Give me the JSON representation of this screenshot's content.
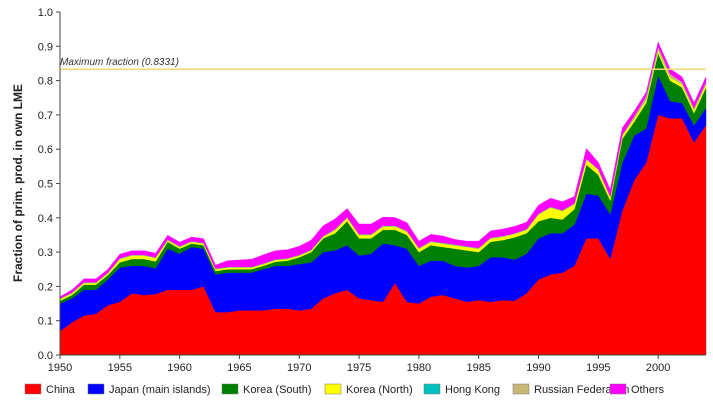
{
  "chart_data": {
    "type": "area",
    "stacked": true,
    "title": "",
    "xlabel": "",
    "ylabel": "Fraction of prim. prod. in own LME",
    "xlim": [
      1950,
      2004
    ],
    "ylim": [
      0,
      1
    ],
    "x_ticks": [
      "1950",
      "1955",
      "1960",
      "1965",
      "1970",
      "1975",
      "1980",
      "1985",
      "1990",
      "1995",
      "2000"
    ],
    "y_ticks": [
      "0.0",
      "0.1",
      "0.2",
      "0.3",
      "0.4",
      "0.5",
      "0.6",
      "0.7",
      "0.8",
      "0.9",
      "1.0"
    ],
    "reference_line": {
      "label": "Maximum fraction (0.8331)",
      "value": 0.8331,
      "color": "#f0d77a"
    },
    "legend_position": "bottom",
    "x": [
      1950,
      1951,
      1952,
      1953,
      1954,
      1955,
      1956,
      1957,
      1958,
      1959,
      1960,
      1961,
      1962,
      1963,
      1964,
      1965,
      1966,
      1967,
      1968,
      1969,
      1970,
      1971,
      1972,
      1973,
      1974,
      1975,
      1976,
      1977,
      1978,
      1979,
      1980,
      1981,
      1982,
      1983,
      1984,
      1985,
      1986,
      1987,
      1988,
      1989,
      1990,
      1991,
      1992,
      1993,
      1994,
      1995,
      1996,
      1997,
      1998,
      1999,
      2000,
      2001,
      2002,
      2003,
      2004
    ],
    "series": [
      {
        "name": "China",
        "color": "#ff0000",
        "values": [
          0.07,
          0.095,
          0.115,
          0.12,
          0.145,
          0.155,
          0.18,
          0.175,
          0.178,
          0.19,
          0.19,
          0.19,
          0.2,
          0.125,
          0.125,
          0.13,
          0.13,
          0.13,
          0.135,
          0.135,
          0.13,
          0.135,
          0.165,
          0.18,
          0.19,
          0.165,
          0.16,
          0.155,
          0.21,
          0.155,
          0.15,
          0.17,
          0.175,
          0.165,
          0.155,
          0.16,
          0.155,
          0.16,
          0.158,
          0.18,
          0.22,
          0.235,
          0.24,
          0.26,
          0.34,
          0.34,
          0.28,
          0.42,
          0.51,
          0.56,
          0.7,
          0.69,
          0.69,
          0.62,
          0.67
        ]
      },
      {
        "name": "Japan (main islands)",
        "color": "#0000ff",
        "values": [
          0.08,
          0.07,
          0.075,
          0.07,
          0.075,
          0.1,
          0.08,
          0.085,
          0.075,
          0.12,
          0.105,
          0.125,
          0.11,
          0.11,
          0.115,
          0.11,
          0.11,
          0.12,
          0.125,
          0.125,
          0.135,
          0.135,
          0.135,
          0.125,
          0.13,
          0.125,
          0.135,
          0.17,
          0.11,
          0.155,
          0.11,
          0.105,
          0.1,
          0.095,
          0.1,
          0.1,
          0.13,
          0.125,
          0.12,
          0.115,
          0.12,
          0.12,
          0.115,
          0.12,
          0.13,
          0.125,
          0.13,
          0.14,
          0.13,
          0.1,
          0.115,
          0.05,
          0.045,
          0.05,
          0.05
        ]
      },
      {
        "name": "Korea (South)",
        "color": "#008000",
        "values": [
          0.008,
          0.01,
          0.015,
          0.015,
          0.013,
          0.015,
          0.02,
          0.02,
          0.02,
          0.02,
          0.015,
          0.01,
          0.01,
          0.01,
          0.01,
          0.01,
          0.01,
          0.01,
          0.012,
          0.015,
          0.02,
          0.03,
          0.04,
          0.05,
          0.07,
          0.05,
          0.045,
          0.04,
          0.045,
          0.04,
          0.04,
          0.045,
          0.04,
          0.05,
          0.05,
          0.04,
          0.045,
          0.05,
          0.065,
          0.06,
          0.05,
          0.045,
          0.04,
          0.045,
          0.085,
          0.06,
          0.04,
          0.07,
          0.04,
          0.075,
          0.065,
          0.06,
          0.045,
          0.035,
          0.06
        ]
      },
      {
        "name": "Korea (North)",
        "color": "#ffff00",
        "values": [
          0.005,
          0.005,
          0.005,
          0.005,
          0.005,
          0.01,
          0.01,
          0.01,
          0.01,
          0.005,
          0.005,
          0.005,
          0.005,
          0.005,
          0.005,
          0.005,
          0.005,
          0.005,
          0.005,
          0.005,
          0.005,
          0.005,
          0.005,
          0.01,
          0.01,
          0.01,
          0.01,
          0.01,
          0.01,
          0.01,
          0.01,
          0.01,
          0.01,
          0.01,
          0.01,
          0.01,
          0.01,
          0.01,
          0.01,
          0.01,
          0.02,
          0.03,
          0.025,
          0.015,
          0.015,
          0.015,
          0.01,
          0.01,
          0.01,
          0.01,
          0.01,
          0.01,
          0.01,
          0.01,
          0.01
        ]
      },
      {
        "name": "Hong Kong",
        "color": "#00c0c0",
        "values": [
          0.001,
          0.001,
          0.001,
          0.001,
          0.001,
          0.001,
          0.001,
          0.001,
          0.001,
          0.001,
          0.001,
          0.001,
          0.001,
          0.001,
          0.001,
          0.001,
          0.001,
          0.001,
          0.001,
          0.001,
          0.001,
          0.001,
          0.001,
          0.001,
          0.001,
          0.001,
          0.001,
          0.001,
          0.001,
          0.001,
          0.001,
          0.001,
          0.001,
          0.001,
          0.001,
          0.001,
          0.001,
          0.001,
          0.001,
          0.001,
          0.001,
          0.001,
          0.001,
          0.001,
          0.001,
          0.001,
          0.001,
          0.001,
          0.001,
          0.001,
          0.001,
          0.001,
          0.001,
          0.001,
          0.001
        ]
      },
      {
        "name": "Russian Federation",
        "color": "#c8b878",
        "values": [
          0.001,
          0.001,
          0.001,
          0.001,
          0.001,
          0.001,
          0.001,
          0.001,
          0.001,
          0.001,
          0.001,
          0.001,
          0.001,
          0.001,
          0.001,
          0.001,
          0.001,
          0.001,
          0.001,
          0.001,
          0.001,
          0.001,
          0.001,
          0.001,
          0.001,
          0.001,
          0.001,
          0.001,
          0.001,
          0.001,
          0.001,
          0.001,
          0.001,
          0.001,
          0.001,
          0.001,
          0.001,
          0.001,
          0.001,
          0.001,
          0.001,
          0.001,
          0.001,
          0.001,
          0.001,
          0.001,
          0.001,
          0.001,
          0.005,
          0.008,
          0.008,
          0.008,
          0.005,
          0.004,
          0.004
        ]
      },
      {
        "name": "Others",
        "color": "#ff00ff",
        "values": [
          0.005,
          0.008,
          0.01,
          0.01,
          0.01,
          0.012,
          0.012,
          0.012,
          0.012,
          0.012,
          0.012,
          0.012,
          0.012,
          0.01,
          0.018,
          0.02,
          0.022,
          0.025,
          0.025,
          0.025,
          0.025,
          0.028,
          0.03,
          0.03,
          0.025,
          0.03,
          0.03,
          0.025,
          0.024,
          0.024,
          0.02,
          0.02,
          0.02,
          0.015,
          0.015,
          0.02,
          0.02,
          0.02,
          0.02,
          0.02,
          0.025,
          0.025,
          0.025,
          0.02,
          0.03,
          0.02,
          0.02,
          0.02,
          0.015,
          0.012,
          0.013,
          0.015,
          0.015,
          0.015,
          0.016
        ]
      }
    ]
  }
}
